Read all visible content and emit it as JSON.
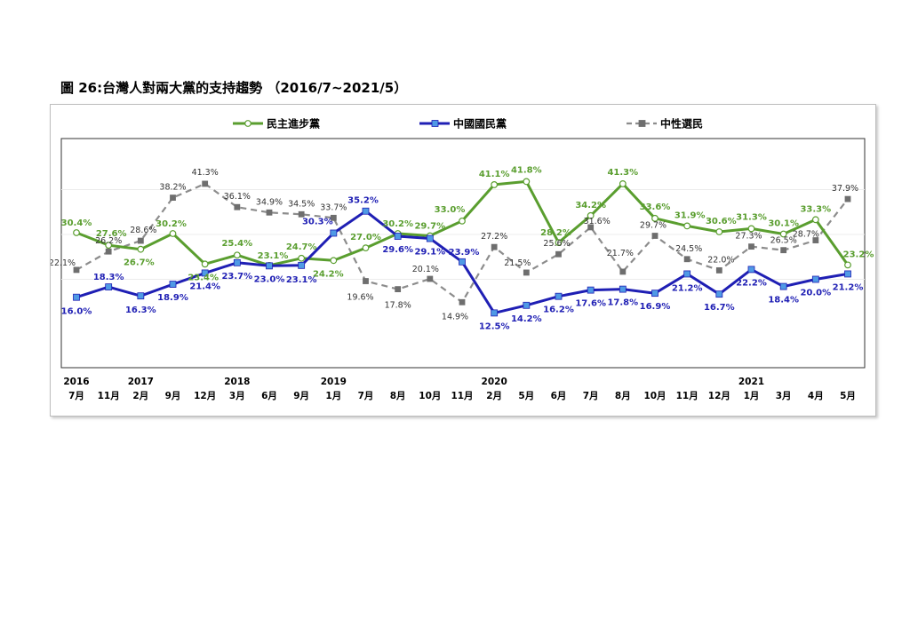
{
  "title": "圖 26:台灣人對兩大黨的支持趨勢 （2016/7~2021/5）",
  "chart_data": {
    "type": "line",
    "categories": [
      "7月",
      "11月",
      "2月",
      "9月",
      "12月",
      "3月",
      "6月",
      "9月",
      "1月",
      "7月",
      "8月",
      "10月",
      "11月",
      "2月",
      "5月",
      "6月",
      "7月",
      "8月",
      "10月",
      "11月",
      "12月",
      "1月",
      "3月",
      "4月",
      "5月"
    ],
    "years": [
      {
        "label": "2016",
        "index": 0
      },
      {
        "label": "2017",
        "index": 2
      },
      {
        "label": "2018",
        "index": 5
      },
      {
        "label": "2019",
        "index": 8
      },
      {
        "label": "2020",
        "index": 13
      },
      {
        "label": "2021",
        "index": 21
      }
    ],
    "series": [
      {
        "name": "民主進步黨",
        "color": "#5a9e2f",
        "marker": "circle",
        "dashed": false,
        "values": [
          30.4,
          27.6,
          26.7,
          30.2,
          23.4,
          25.4,
          23.1,
          24.7,
          24.2,
          27.0,
          30.2,
          29.7,
          33.0,
          41.1,
          41.8,
          28.2,
          34.2,
          41.3,
          33.6,
          31.9,
          30.6,
          31.3,
          30.1,
          33.3,
          23.2
        ]
      },
      {
        "name": "中國國民黨",
        "color": "#1f1fb4",
        "marker": "square",
        "dashed": false,
        "values": [
          16.0,
          18.3,
          16.3,
          18.9,
          21.4,
          23.7,
          23.0,
          23.1,
          30.3,
          35.2,
          29.6,
          29.1,
          23.9,
          12.5,
          14.2,
          16.2,
          17.6,
          17.8,
          16.9,
          21.2,
          16.7,
          22.2,
          18.4,
          20.0,
          21.2
        ]
      },
      {
        "name": "中性選民",
        "color": "#8c8c8c",
        "marker": "square",
        "dashed": true,
        "values": [
          22.1,
          26.2,
          28.6,
          38.2,
          41.3,
          36.1,
          34.9,
          34.5,
          33.7,
          19.6,
          17.8,
          20.1,
          14.9,
          27.2,
          21.5,
          25.6,
          31.6,
          21.7,
          29.7,
          24.5,
          22.0,
          27.3,
          26.5,
          28.7,
          37.9
        ]
      }
    ],
    "ylim": [
      0,
      50
    ],
    "grid": true,
    "legend_position": "top"
  }
}
